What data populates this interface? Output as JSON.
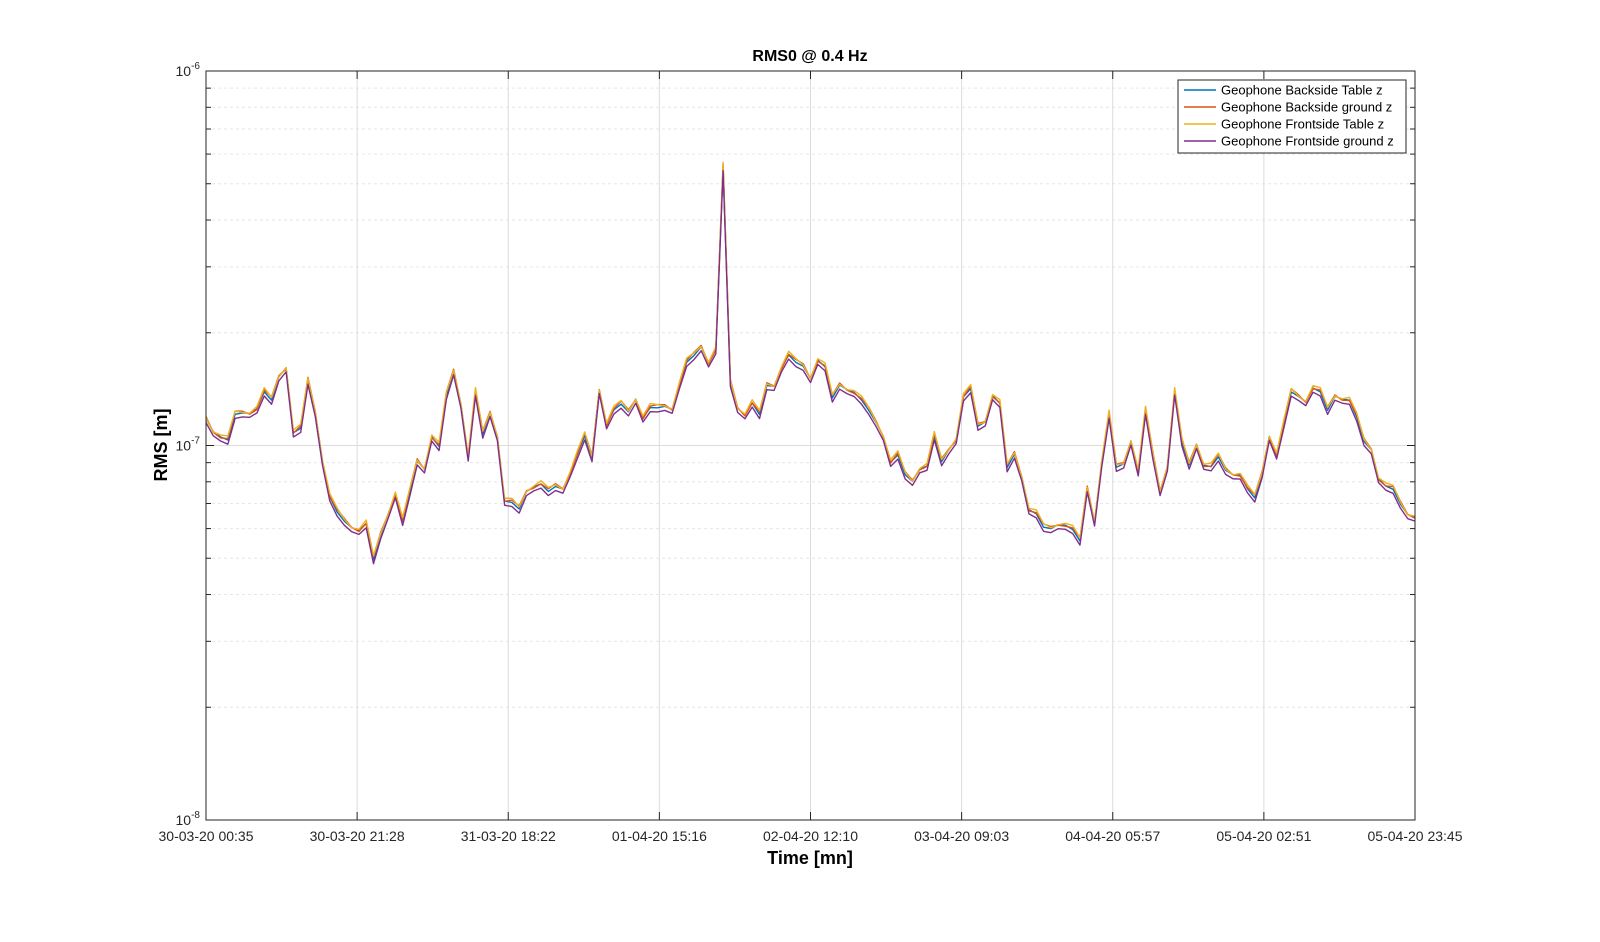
{
  "chart_data": {
    "type": "line",
    "title": "RMS0 @ 0.4 Hz",
    "xlabel": "Time [mn]",
    "ylabel": "RMS [m]",
    "yscale": "log",
    "ylim": [
      1e-08,
      1e-06
    ],
    "y_ticks": [
      {
        "value": 1e-08,
        "base": "10",
        "exp": "-8"
      },
      {
        "value": 1e-07,
        "base": "10",
        "exp": "-7"
      },
      {
        "value": 1e-06,
        "base": "10",
        "exp": "-6"
      }
    ],
    "x_ticks": [
      "30-03-20 00:35",
      "30-03-20 21:28",
      "31-03-20 18:22",
      "01-04-20 15:16",
      "02-04-20 12:10",
      "03-04-20 09:03",
      "04-04-20 05:57",
      "05-04-20 02:51",
      "05-04-20 23:45"
    ],
    "grid": true,
    "legend_position": "top-right",
    "colors": [
      "#0072BD",
      "#D95319",
      "#EDB120",
      "#7E2F8E"
    ],
    "series": [
      {
        "name": "Geophone Backside Table z",
        "color": "#0072BD"
      },
      {
        "name": "Geophone Backside ground z",
        "color": "#D95319"
      },
      {
        "name": "Geophone Frontside Table z",
        "color": "#EDB120"
      },
      {
        "name": "Geophone Frontside ground z",
        "color": "#7E2F8E"
      }
    ],
    "base_values_e7": [
      1.18,
      1.08,
      1.05,
      1.04,
      1.22,
      1.22,
      1.21,
      1.25,
      1.4,
      1.33,
      1.52,
      1.6,
      1.08,
      1.12,
      1.5,
      1.22,
      0.9,
      0.73,
      0.67,
      0.63,
      0.6,
      0.59,
      0.62,
      0.5,
      0.58,
      0.65,
      0.74,
      0.63,
      0.76,
      0.91,
      0.86,
      1.05,
      1.0,
      1.37,
      1.58,
      1.28,
      0.93,
      1.4,
      1.08,
      1.22,
      1.05,
      0.71,
      0.71,
      0.68,
      0.75,
      0.77,
      0.79,
      0.76,
      0.78,
      0.76,
      0.84,
      0.95,
      1.07,
      0.93,
      1.4,
      1.13,
      1.25,
      1.3,
      1.23,
      1.32,
      1.18,
      1.27,
      1.27,
      1.27,
      1.24,
      1.45,
      1.68,
      1.75,
      1.83,
      1.65,
      1.8,
      5.6,
      1.48,
      1.25,
      1.2,
      1.3,
      1.22,
      1.45,
      1.43,
      1.6,
      1.75,
      1.68,
      1.63,
      1.5,
      1.68,
      1.63,
      1.35,
      1.45,
      1.4,
      1.38,
      1.33,
      1.25,
      1.15,
      1.05,
      0.9,
      0.95,
      0.84,
      0.8,
      0.86,
      0.88,
      1.07,
      0.91,
      0.97,
      1.03,
      1.35,
      1.43,
      1.13,
      1.15,
      1.35,
      1.3,
      0.88,
      0.95,
      0.82,
      0.67,
      0.66,
      0.61,
      0.6,
      0.61,
      0.61,
      0.6,
      0.56,
      0.77,
      0.62,
      0.9,
      1.22,
      0.88,
      0.89,
      1.02,
      0.85,
      1.25,
      0.95,
      0.75,
      0.87,
      1.4,
      1.03,
      0.89,
      1.0,
      0.88,
      0.88,
      0.94,
      0.86,
      0.83,
      0.83,
      0.77,
      0.73,
      0.84,
      1.05,
      0.94,
      1.15,
      1.4,
      1.35,
      1.3,
      1.42,
      1.4,
      1.25,
      1.35,
      1.32,
      1.32,
      1.2,
      1.03,
      0.97,
      0.81,
      0.78,
      0.77,
      0.7,
      0.65,
      0.64
    ]
  }
}
